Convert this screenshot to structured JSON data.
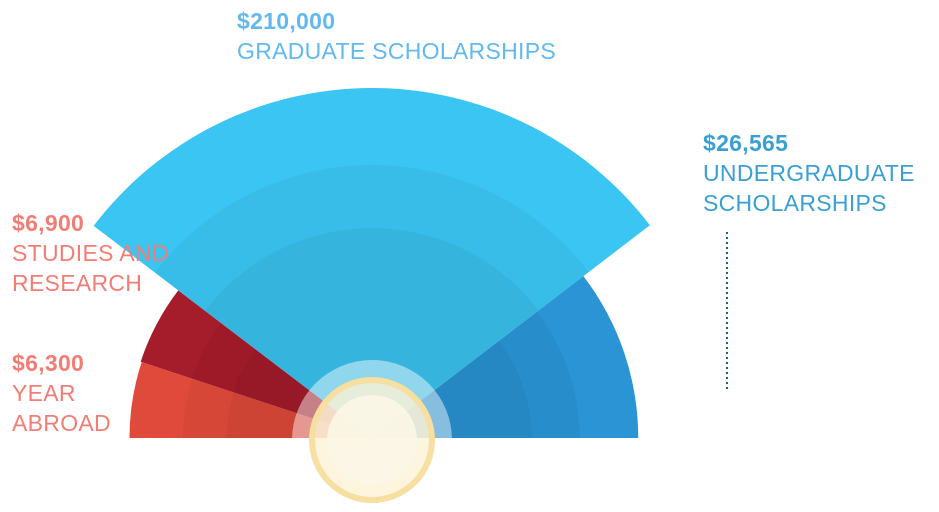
{
  "chart_data": {
    "type": "polar",
    "categories": [
      "YEAR ABROAD",
      "STUDIES AND RESEARCH",
      "GRADUATE SCHOLARSHIPS",
      "UNDERGRADUATE SCHOLARSHIPS"
    ],
    "values": [
      6300,
      6900,
      210000,
      26565
    ],
    "value_labels": [
      "$6,300",
      "$6,900",
      "$210,000",
      "$26,565"
    ],
    "colors": [
      "#e04a3a",
      "#a51c2a",
      "#3bc5f2",
      "#2a94d4"
    ],
    "label_colors": [
      "#f27d74",
      "#f27d74",
      "#62b8f0",
      "#3a9fd2"
    ]
  }
}
